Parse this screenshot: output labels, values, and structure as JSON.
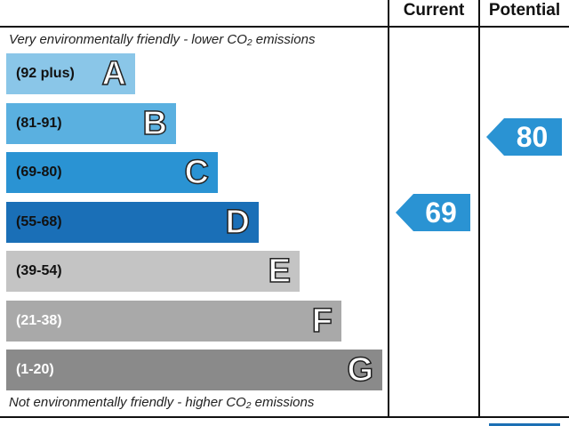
{
  "headers": {
    "current": "Current",
    "potential": "Potential"
  },
  "notes": {
    "top": "Very environmentally friendly - lower CO₂ emissions",
    "bottom": "Not environmentally friendly - higher CO₂ emissions"
  },
  "chart_data": {
    "type": "bar",
    "bands": [
      {
        "range": "(92 plus)",
        "letter": "A",
        "color": "#8ac6e8",
        "range_color": "#111111"
      },
      {
        "range": "(81-91)",
        "letter": "B",
        "color": "#5ab0e0",
        "range_color": "#111111"
      },
      {
        "range": "(69-80)",
        "letter": "C",
        "color": "#2a93d3",
        "range_color": "#111111"
      },
      {
        "range": "(55-68)",
        "letter": "D",
        "color": "#1a6fb7",
        "range_color": "#111111"
      },
      {
        "range": "(39-54)",
        "letter": "E",
        "color": "#c4c4c4",
        "range_color": "#111111"
      },
      {
        "range": "(21-38)",
        "letter": "F",
        "color": "#a9a9a9",
        "range_color": "#ffffff"
      },
      {
        "range": "(1-20)",
        "letter": "G",
        "color": "#8a8a8a",
        "range_color": "#ffffff"
      }
    ],
    "current": {
      "value": "69",
      "band": "C",
      "color": "#2a93d3"
    },
    "potential": {
      "value": "80",
      "band": "C",
      "color": "#2a93d3"
    }
  }
}
